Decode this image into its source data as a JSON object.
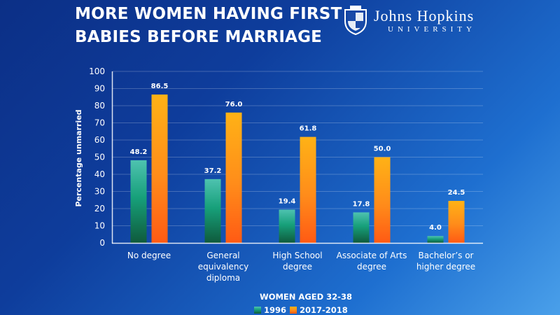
{
  "header": {
    "title_line1": "MORE WOMEN HAVING FIRST",
    "title_line2": "BABIES BEFORE MARRIAGE"
  },
  "logo": {
    "name": "Johns Hopkins",
    "subtitle": "UNIVERSITY"
  },
  "colors": {
    "series_1996": "#1aa47a",
    "series_2017": "#ff9a1f",
    "background": "#0e3d9c"
  },
  "chart_data": {
    "type": "bar",
    "title": "MORE WOMEN HAVING FIRST BABIES BEFORE MARRIAGE",
    "xlabel": "WOMEN AGED 32-38",
    "ylabel": "Percentage unmarried",
    "ylim": [
      0,
      100
    ],
    "yticks": [
      0,
      10,
      20,
      30,
      40,
      50,
      60,
      70,
      80,
      90,
      100
    ],
    "grid": true,
    "legend_position": "bottom",
    "categories": [
      [
        "No degree"
      ],
      [
        "General",
        "equivalency",
        "diploma"
      ],
      [
        "High School",
        "degree"
      ],
      [
        "Associate of Arts",
        "degree"
      ],
      [
        "Bachelor’s or",
        "higher degree"
      ]
    ],
    "series": [
      {
        "name": "1996",
        "values": [
          48.2,
          37.2,
          19.4,
          17.8,
          4.0
        ],
        "labels": [
          "48.2",
          "37.2",
          "19.4",
          "17.8",
          "4.0"
        ]
      },
      {
        "name": "2017-2018",
        "values": [
          86.5,
          76.0,
          61.8,
          50.0,
          24.5
        ],
        "labels": [
          "86.5",
          "76.0",
          "61.8",
          "50.0",
          "24.5"
        ]
      }
    ]
  }
}
